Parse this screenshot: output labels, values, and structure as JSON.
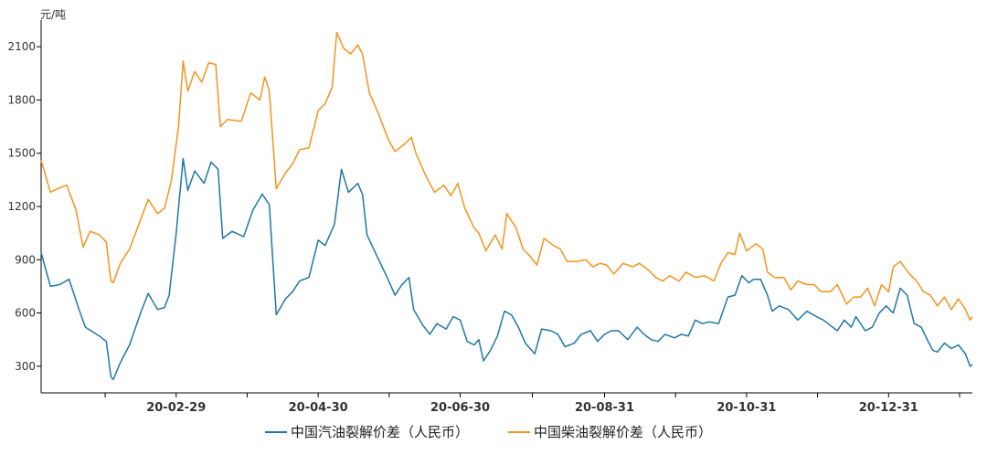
{
  "chart_data": {
    "type": "line",
    "unit_label": "元/吨",
    "y_ticks": [
      300,
      600,
      900,
      1200,
      1500,
      1800,
      2100
    ],
    "ylim": [
      150,
      2250
    ],
    "x_tick_labels": [
      "20-02-29",
      "20-04-30",
      "20-06-30",
      "20-08-31",
      "20-10-31",
      "20-12-31"
    ],
    "x_tick_dates": [
      "2020-02-29",
      "2020-04-30",
      "2020-06-30",
      "2020-08-31",
      "2020-10-31",
      "2020-12-31"
    ],
    "xlim": [
      "2020-01-02",
      "2021-02-05"
    ],
    "grid": false,
    "legend_position": "bottom",
    "series": [
      {
        "name": "中国汽油裂解价差（人民币）",
        "color": "#1f77a4",
        "points": [
          [
            "2020-01-02",
            940
          ],
          [
            "2020-01-06",
            750
          ],
          [
            "2020-01-10",
            760
          ],
          [
            "2020-01-14",
            790
          ],
          [
            "2020-01-18",
            630
          ],
          [
            "2020-01-21",
            520
          ],
          [
            "2020-01-27",
            470
          ],
          [
            "2020-01-30",
            440
          ],
          [
            "2020-02-01",
            240
          ],
          [
            "2020-02-02",
            225
          ],
          [
            "2020-02-05",
            320
          ],
          [
            "2020-02-09",
            420
          ],
          [
            "2020-02-14",
            610
          ],
          [
            "2020-02-17",
            710
          ],
          [
            "2020-02-21",
            620
          ],
          [
            "2020-02-24",
            630
          ],
          [
            "2020-02-26",
            700
          ],
          [
            "2020-02-29",
            1050
          ],
          [
            "2020-03-03",
            1470
          ],
          [
            "2020-03-05",
            1290
          ],
          [
            "2020-03-08",
            1400
          ],
          [
            "2020-03-12",
            1330
          ],
          [
            "2020-03-15",
            1450
          ],
          [
            "2020-03-18",
            1410
          ],
          [
            "2020-03-20",
            1020
          ],
          [
            "2020-03-24",
            1060
          ],
          [
            "2020-03-29",
            1030
          ],
          [
            "2020-04-02",
            1180
          ],
          [
            "2020-04-06",
            1270
          ],
          [
            "2020-04-09",
            1210
          ],
          [
            "2020-04-12",
            590
          ],
          [
            "2020-04-16",
            680
          ],
          [
            "2020-04-19",
            720
          ],
          [
            "2020-04-22",
            780
          ],
          [
            "2020-04-26",
            800
          ],
          [
            "2020-04-30",
            1010
          ],
          [
            "2020-05-03",
            980
          ],
          [
            "2020-05-07",
            1100
          ],
          [
            "2020-05-10",
            1410
          ],
          [
            "2020-05-13",
            1280
          ],
          [
            "2020-05-17",
            1330
          ],
          [
            "2020-05-19",
            1270
          ],
          [
            "2020-05-21",
            1040
          ],
          [
            "2020-05-26",
            900
          ],
          [
            "2020-05-30",
            790
          ],
          [
            "2020-06-02",
            700
          ],
          [
            "2020-06-05",
            760
          ],
          [
            "2020-06-08",
            800
          ],
          [
            "2020-06-10",
            620
          ],
          [
            "2020-06-14",
            530
          ],
          [
            "2020-06-17",
            480
          ],
          [
            "2020-06-20",
            540
          ],
          [
            "2020-06-24",
            510
          ],
          [
            "2020-06-27",
            580
          ],
          [
            "2020-06-30",
            560
          ],
          [
            "2020-07-03",
            440
          ],
          [
            "2020-07-06",
            420
          ],
          [
            "2020-07-08",
            450
          ],
          [
            "2020-07-10",
            330
          ],
          [
            "2020-07-13",
            390
          ],
          [
            "2020-07-16",
            470
          ],
          [
            "2020-07-19",
            610
          ],
          [
            "2020-07-22",
            590
          ],
          [
            "2020-07-25",
            520
          ],
          [
            "2020-07-28",
            430
          ],
          [
            "2020-08-01",
            370
          ],
          [
            "2020-08-04",
            510
          ],
          [
            "2020-08-08",
            500
          ],
          [
            "2020-08-11",
            480
          ],
          [
            "2020-08-14",
            410
          ],
          [
            "2020-08-18",
            430
          ],
          [
            "2020-08-21",
            480
          ],
          [
            "2020-08-25",
            500
          ],
          [
            "2020-08-28",
            440
          ],
          [
            "2020-08-31",
            480
          ],
          [
            "2020-09-03",
            500
          ],
          [
            "2020-09-06",
            500
          ],
          [
            "2020-09-10",
            450
          ],
          [
            "2020-09-14",
            520
          ],
          [
            "2020-09-17",
            480
          ],
          [
            "2020-09-20",
            450
          ],
          [
            "2020-09-23",
            440
          ],
          [
            "2020-09-26",
            480
          ],
          [
            "2020-09-30",
            460
          ],
          [
            "2020-10-03",
            480
          ],
          [
            "2020-10-06",
            470
          ],
          [
            "2020-10-09",
            560
          ],
          [
            "2020-10-12",
            540
          ],
          [
            "2020-10-15",
            550
          ],
          [
            "2020-10-19",
            540
          ],
          [
            "2020-10-23",
            690
          ],
          [
            "2020-10-26",
            700
          ],
          [
            "2020-10-29",
            810
          ],
          [
            "2020-11-01",
            770
          ],
          [
            "2020-11-03",
            790
          ],
          [
            "2020-11-06",
            790
          ],
          [
            "2020-11-09",
            700
          ],
          [
            "2020-11-11",
            610
          ],
          [
            "2020-11-14",
            640
          ],
          [
            "2020-11-18",
            620
          ],
          [
            "2020-11-22",
            560
          ],
          [
            "2020-11-26",
            610
          ],
          [
            "2020-11-30",
            580
          ],
          [
            "2020-12-03",
            560
          ],
          [
            "2020-12-06",
            530
          ],
          [
            "2020-12-09",
            500
          ],
          [
            "2020-12-12",
            560
          ],
          [
            "2020-12-15",
            520
          ],
          [
            "2020-12-17",
            580
          ],
          [
            "2020-12-21",
            500
          ],
          [
            "2020-12-24",
            520
          ],
          [
            "2020-12-27",
            600
          ],
          [
            "2020-12-30",
            640
          ],
          [
            "2021-01-02",
            600
          ],
          [
            "2021-01-05",
            740
          ],
          [
            "2021-01-08",
            700
          ],
          [
            "2021-01-11",
            540
          ],
          [
            "2021-01-14",
            520
          ],
          [
            "2021-01-17",
            440
          ],
          [
            "2021-01-19",
            390
          ],
          [
            "2021-01-21",
            380
          ],
          [
            "2021-01-24",
            430
          ],
          [
            "2021-01-27",
            400
          ],
          [
            "2021-01-30",
            420
          ],
          [
            "2021-02-02",
            370
          ],
          [
            "2021-02-04",
            300
          ],
          [
            "2021-02-05",
            310
          ]
        ]
      },
      {
        "name": "中国柴油裂解价差（人民币）",
        "color": "#f5931e",
        "points": [
          [
            "2020-01-02",
            1460
          ],
          [
            "2020-01-06",
            1280
          ],
          [
            "2020-01-09",
            1300
          ],
          [
            "2020-01-13",
            1320
          ],
          [
            "2020-01-17",
            1180
          ],
          [
            "2020-01-20",
            970
          ],
          [
            "2020-01-23",
            1060
          ],
          [
            "2020-01-27",
            1040
          ],
          [
            "2020-01-30",
            1000
          ],
          [
            "2020-02-01",
            780
          ],
          [
            "2020-02-02",
            770
          ],
          [
            "2020-02-05",
            880
          ],
          [
            "2020-02-09",
            960
          ],
          [
            "2020-02-13",
            1100
          ],
          [
            "2020-02-17",
            1240
          ],
          [
            "2020-02-21",
            1160
          ],
          [
            "2020-02-24",
            1190
          ],
          [
            "2020-02-27",
            1350
          ],
          [
            "2020-03-01",
            1650
          ],
          [
            "2020-03-03",
            2020
          ],
          [
            "2020-03-05",
            1850
          ],
          [
            "2020-03-08",
            1960
          ],
          [
            "2020-03-11",
            1900
          ],
          [
            "2020-03-14",
            2010
          ],
          [
            "2020-03-17",
            2000
          ],
          [
            "2020-03-19",
            1650
          ],
          [
            "2020-03-22",
            1690
          ],
          [
            "2020-03-28",
            1680
          ],
          [
            "2020-04-01",
            1840
          ],
          [
            "2020-04-05",
            1800
          ],
          [
            "2020-04-07",
            1930
          ],
          [
            "2020-04-09",
            1850
          ],
          [
            "2020-04-12",
            1300
          ],
          [
            "2020-04-16",
            1390
          ],
          [
            "2020-04-19",
            1440
          ],
          [
            "2020-04-22",
            1520
          ],
          [
            "2020-04-26",
            1530
          ],
          [
            "2020-04-30",
            1740
          ],
          [
            "2020-05-03",
            1780
          ],
          [
            "2020-05-06",
            1870
          ],
          [
            "2020-05-08",
            2180
          ],
          [
            "2020-05-11",
            2090
          ],
          [
            "2020-05-14",
            2060
          ],
          [
            "2020-05-17",
            2110
          ],
          [
            "2020-05-19",
            2060
          ],
          [
            "2020-05-22",
            1840
          ],
          [
            "2020-05-26",
            1720
          ],
          [
            "2020-05-30",
            1580
          ],
          [
            "2020-06-02",
            1510
          ],
          [
            "2020-06-06",
            1550
          ],
          [
            "2020-06-09",
            1590
          ],
          [
            "2020-06-11",
            1500
          ],
          [
            "2020-06-15",
            1380
          ],
          [
            "2020-06-19",
            1280
          ],
          [
            "2020-06-23",
            1320
          ],
          [
            "2020-06-26",
            1260
          ],
          [
            "2020-06-29",
            1330
          ],
          [
            "2020-07-02",
            1190
          ],
          [
            "2020-07-06",
            1080
          ],
          [
            "2020-07-08",
            1050
          ],
          [
            "2020-07-11",
            950
          ],
          [
            "2020-07-15",
            1040
          ],
          [
            "2020-07-18",
            960
          ],
          [
            "2020-07-20",
            1160
          ],
          [
            "2020-07-24",
            1080
          ],
          [
            "2020-07-27",
            960
          ],
          [
            "2020-07-30",
            920
          ],
          [
            "2020-08-02",
            870
          ],
          [
            "2020-08-05",
            1020
          ],
          [
            "2020-08-09",
            980
          ],
          [
            "2020-08-12",
            960
          ],
          [
            "2020-08-15",
            890
          ],
          [
            "2020-08-19",
            890
          ],
          [
            "2020-08-23",
            900
          ],
          [
            "2020-08-26",
            860
          ],
          [
            "2020-08-29",
            880
          ],
          [
            "2020-09-01",
            870
          ],
          [
            "2020-09-04",
            820
          ],
          [
            "2020-09-08",
            880
          ],
          [
            "2020-09-12",
            860
          ],
          [
            "2020-09-15",
            880
          ],
          [
            "2020-09-19",
            840
          ],
          [
            "2020-09-22",
            800
          ],
          [
            "2020-09-25",
            780
          ],
          [
            "2020-09-28",
            810
          ],
          [
            "2020-10-02",
            780
          ],
          [
            "2020-10-05",
            830
          ],
          [
            "2020-10-09",
            800
          ],
          [
            "2020-10-13",
            810
          ],
          [
            "2020-10-17",
            780
          ],
          [
            "2020-10-20",
            880
          ],
          [
            "2020-10-23",
            940
          ],
          [
            "2020-10-26",
            930
          ],
          [
            "2020-10-28",
            1050
          ],
          [
            "2020-10-31",
            950
          ],
          [
            "2020-11-04",
            990
          ],
          [
            "2020-11-07",
            960
          ],
          [
            "2020-11-09",
            830
          ],
          [
            "2020-11-12",
            800
          ],
          [
            "2020-11-16",
            800
          ],
          [
            "2020-11-19",
            730
          ],
          [
            "2020-11-22",
            780
          ],
          [
            "2020-11-26",
            760
          ],
          [
            "2020-11-29",
            760
          ],
          [
            "2020-12-02",
            720
          ],
          [
            "2020-12-06",
            720
          ],
          [
            "2020-12-09",
            760
          ],
          [
            "2020-12-13",
            650
          ],
          [
            "2020-12-16",
            690
          ],
          [
            "2020-12-19",
            690
          ],
          [
            "2020-12-22",
            740
          ],
          [
            "2020-12-25",
            640
          ],
          [
            "2020-12-28",
            760
          ],
          [
            "2020-12-31",
            720
          ],
          [
            "2021-01-02",
            860
          ],
          [
            "2021-01-05",
            890
          ],
          [
            "2021-01-09",
            820
          ],
          [
            "2021-01-12",
            780
          ],
          [
            "2021-01-15",
            720
          ],
          [
            "2021-01-18",
            700
          ],
          [
            "2021-01-21",
            640
          ],
          [
            "2021-01-24",
            690
          ],
          [
            "2021-01-27",
            620
          ],
          [
            "2021-01-30",
            680
          ],
          [
            "2021-02-02",
            620
          ],
          [
            "2021-02-04",
            560
          ],
          [
            "2021-02-05",
            580
          ]
        ]
      }
    ]
  }
}
